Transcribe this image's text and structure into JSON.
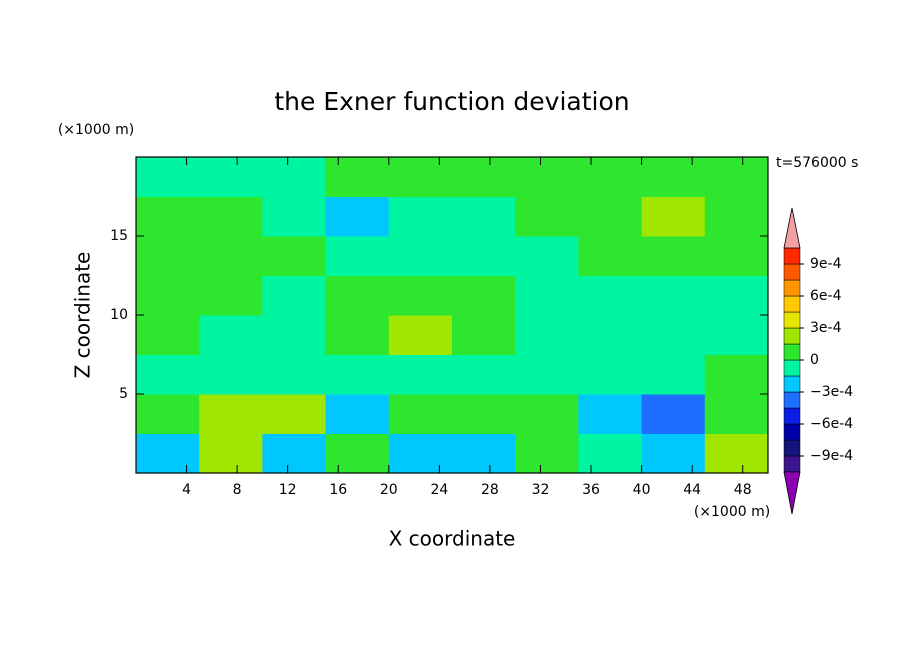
{
  "chart_data": {
    "type": "contour",
    "title": "the Exner function deviation",
    "x_label": "X coordinate",
    "y_label": "Z coordinate",
    "x_unit": "(×1000 m)",
    "y_unit": "(×1000 m)",
    "annotation": "t=576000 s",
    "xlim": [
      0,
      50
    ],
    "ylim": [
      0,
      20
    ],
    "xticks": [
      4,
      8,
      12,
      16,
      20,
      24,
      28,
      32,
      36,
      40,
      44,
      48
    ],
    "yticks": [
      5,
      10,
      15
    ],
    "x": [
      2.5,
      7.5,
      12.5,
      17.5,
      22.5,
      27.5,
      32.5,
      37.5,
      42.5,
      47.5
    ],
    "y": [
      1.25,
      3.75,
      6.25,
      8.75,
      11.25,
      13.75,
      16.25,
      18.75
    ],
    "z": [
      [
        -0.0002,
        0.0002,
        -0.0002,
        0.0001,
        -0.0002,
        -0.0002,
        0.0001,
        -0.0001,
        -0.0002,
        0.0002
      ],
      [
        0.0001,
        0.0002,
        0.0002,
        -0.0002,
        0.0001,
        0.0001,
        0.0001,
        -0.0002,
        -0.0004,
        0.0001
      ],
      [
        -0.0001,
        -0.0001,
        -0.0001,
        -0.0001,
        -0.0001,
        -0.0001,
        -0.0001,
        -0.0001,
        -0.0001,
        0.0001
      ],
      [
        0.0001,
        -0.0001,
        -0.0001,
        0.0001,
        0.0002,
        0.0001,
        -0.0001,
        -0.0001,
        -0.0001,
        -0.0001
      ],
      [
        0.0001,
        0.0001,
        -0.0001,
        0.0001,
        0.0001,
        0.0001,
        -0.0001,
        -0.0001,
        -0.0001,
        -0.0001
      ],
      [
        0.0001,
        0.0001,
        0.0001,
        -0.0001,
        -0.0001,
        -0.0001,
        -0.0001,
        0.0001,
        0.0001,
        0.0001
      ],
      [
        0.0001,
        0.0001,
        -0.0001,
        -0.0002,
        -0.0001,
        -0.0001,
        0.0001,
        0.0001,
        0.0002,
        0.0001
      ],
      [
        -0.0001,
        -0.0001,
        -0.0001,
        0.0001,
        0.0001,
        0.0001,
        0.0001,
        0.0001,
        0.0001,
        0.0001
      ]
    ],
    "colorbar": {
      "levels": [
        -0.00105,
        -0.0009,
        -0.00075,
        -0.0006,
        -0.00045,
        -0.0003,
        -0.00015,
        0,
        0.00015,
        0.0003,
        0.00045,
        0.0006,
        0.00075,
        0.0009,
        0.00105
      ],
      "colors": [
        "#3c1490",
        "#14147a",
        "#0000aa",
        "#0a1ee6",
        "#1e6eff",
        "#00c8ff",
        "#00f5a0",
        "#2ee62e",
        "#a0e600",
        "#e6e600",
        "#ffc800",
        "#ff9600",
        "#ff5a00",
        "#ff2800"
      ],
      "over_color": "#f4a0a0",
      "under_color": "#8c00b4",
      "ticks": [
        {
          "value": 0.0009,
          "label": "9e-4"
        },
        {
          "value": 0.0006,
          "label": "6e-4"
        },
        {
          "value": 0.0003,
          "label": "3e-4"
        },
        0,
        {
          "value": -0.0003,
          "label": "−3e-4"
        },
        {
          "value": -0.0006,
          "label": "−6e-4"
        },
        {
          "value": -0.0009,
          "label": "−9e-4"
        }
      ]
    }
  }
}
